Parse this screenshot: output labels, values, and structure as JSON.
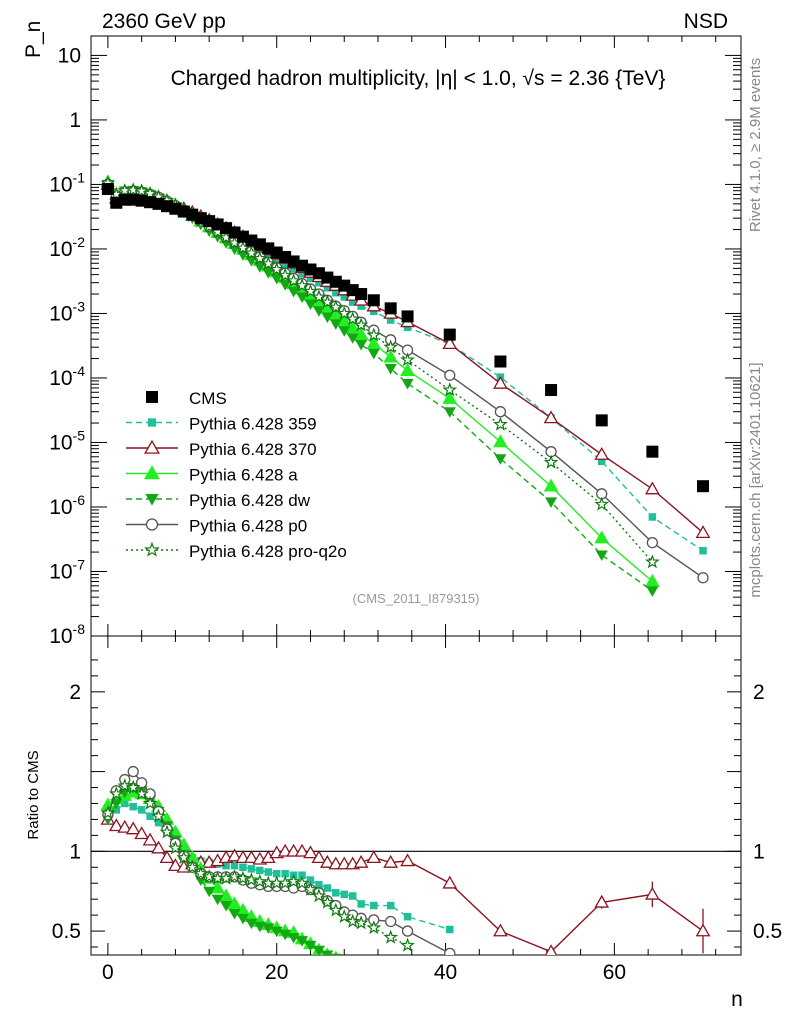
{
  "header": {
    "left": "2360 GeV pp",
    "right": "NSD",
    "title": "Charged hadron multiplicity, |η| < 1.0, √s = 2.36 {TeV}",
    "side_top": "Rivet 4.1.0, ≥ 2.9M events",
    "side_bottom": "mcplots.cern.ch [arXiv:2401.10621]",
    "analysis": "(CMS_2011_I879315)"
  },
  "colors": {
    "cms": "#000000",
    "p359": "#1fbf99",
    "p370": "#8b1420",
    "pa": "#22ee22",
    "pdw": "#13a813",
    "pp0": "#555555",
    "pq2o": "#0d7a0d"
  },
  "chart_data": {
    "type": "line",
    "title": "Charged hadron multiplicity, |η| < 1.0, √s = 2.36 {TeV}",
    "xlabel": "n",
    "ylabel": "P_n",
    "ratio_ylabel": "Ratio to CMS",
    "xlim": [
      -2,
      75
    ],
    "ylim": [
      1e-08,
      20
    ],
    "ratio_ylim": [
      0.35,
      2.35
    ],
    "x_ticks": [
      0,
      20,
      40,
      60
    ],
    "y_ticks": [
      {
        "v": 1e-08,
        "base": "10",
        "exp": "-8"
      },
      {
        "v": 1e-07,
        "base": "10",
        "exp": "-7"
      },
      {
        "v": 1e-06,
        "base": "10",
        "exp": "-6"
      },
      {
        "v": 1e-05,
        "base": "10",
        "exp": "-5"
      },
      {
        "v": 0.0001,
        "base": "10",
        "exp": "-4"
      },
      {
        "v": 0.001,
        "base": "10",
        "exp": "-3"
      },
      {
        "v": 0.01,
        "base": "10",
        "exp": "-2"
      },
      {
        "v": 0.1,
        "base": "10",
        "exp": "-1"
      },
      {
        "v": 1,
        "base": "1",
        "exp": ""
      },
      {
        "v": 10,
        "base": "10",
        "exp": ""
      }
    ],
    "ratio_ticks": [
      0.5,
      1,
      2
    ],
    "cms": {
      "name": "CMS",
      "x": [
        0,
        1,
        2,
        3,
        4,
        5,
        6,
        7,
        8,
        9,
        10,
        11,
        12,
        13,
        14,
        15,
        16,
        17,
        18,
        19,
        20,
        21,
        22,
        23,
        24,
        25,
        26,
        27,
        28,
        29,
        30,
        31.5,
        33.5,
        35.5,
        40.5,
        46.5,
        52.5,
        58.5,
        64.5,
        70.5
      ],
      "y": [
        0.085,
        0.052,
        0.058,
        0.058,
        0.056,
        0.053,
        0.05,
        0.046,
        0.042,
        0.038,
        0.034,
        0.03,
        0.027,
        0.024,
        0.021,
        0.018,
        0.0155,
        0.0135,
        0.0118,
        0.0102,
        0.0088,
        0.0075,
        0.0064,
        0.0055,
        0.0048,
        0.0042,
        0.0036,
        0.0031,
        0.0027,
        0.0023,
        0.002,
        0.0016,
        0.0012,
        0.0009,
        0.00047,
        0.00018,
        6.5e-05,
        2.2e-05,
        7.2e-06,
        2.1e-06
      ]
    },
    "series": [
      {
        "name": "Pythia 6.428 359",
        "key": "p359",
        "marker": "square",
        "dash": "6,4",
        "x": [
          0,
          1,
          2,
          3,
          4,
          5,
          6,
          7,
          8,
          9,
          10,
          11,
          12,
          13,
          14,
          15,
          16,
          17,
          18,
          19,
          20,
          21,
          22,
          23,
          24,
          25,
          26,
          27,
          28,
          29,
          30,
          31.5,
          33.5,
          35.5,
          40.5,
          46.5,
          52.5,
          58.5,
          64.5,
          70.5
        ],
        "y": [
          0.1,
          0.062,
          0.075,
          0.077,
          0.074,
          0.068,
          0.061,
          0.054,
          0.047,
          0.04,
          0.034,
          0.029,
          0.024,
          0.021,
          0.0175,
          0.015,
          0.0128,
          0.011,
          0.0095,
          0.0081,
          0.0069,
          0.0058,
          0.0049,
          0.0041,
          0.0035,
          0.003,
          0.0025,
          0.0021,
          0.0018,
          0.0015,
          0.0013,
          0.00108,
          0.00079,
          0.00061,
          0.000335,
          0.000103,
          2.4e-05,
          5.1e-06,
          7e-07,
          2.1e-07
        ],
        "ratio_x": [
          0,
          1,
          2,
          3,
          4,
          5,
          6,
          7,
          8,
          9,
          10,
          11,
          12,
          13,
          14,
          15,
          16,
          17,
          18,
          19,
          20,
          21,
          22,
          23,
          24,
          25,
          26,
          27,
          28,
          29,
          30,
          31.5,
          33.5,
          35.5,
          40.5
        ],
        "ratio_y": [
          1.22,
          1.26,
          1.3,
          1.28,
          1.26,
          1.22,
          1.18,
          1.12,
          1.06,
          1.0,
          0.96,
          0.94,
          0.93,
          0.92,
          0.91,
          0.91,
          0.9,
          0.89,
          0.88,
          0.87,
          0.86,
          0.86,
          0.85,
          0.85,
          0.82,
          0.79,
          0.77,
          0.74,
          0.73,
          0.72,
          0.67,
          0.66,
          0.66,
          0.59,
          0.51
        ]
      },
      {
        "name": "Pythia 6.428 370",
        "key": "p370",
        "marker": "open-triangle",
        "dash": "",
        "x": [
          0,
          1,
          2,
          3,
          4,
          5,
          6,
          7,
          8,
          9,
          10,
          11,
          12,
          13,
          14,
          15,
          16,
          17,
          18,
          19,
          20,
          21,
          22,
          23,
          24,
          25,
          26,
          27,
          28,
          29,
          30,
          31.5,
          33.5,
          35.5,
          40.5,
          46.5,
          52.5,
          58.5,
          64.5,
          70.5
        ],
        "y": [
          0.1,
          0.061,
          0.066,
          0.067,
          0.065,
          0.062,
          0.058,
          0.053,
          0.047,
          0.042,
          0.037,
          0.032,
          0.028,
          0.024,
          0.021,
          0.018,
          0.0155,
          0.013,
          0.0112,
          0.0096,
          0.0083,
          0.0071,
          0.006,
          0.0051,
          0.0043,
          0.0037,
          0.0031,
          0.0027,
          0.0023,
          0.0019,
          0.0016,
          0.0013,
          0.001,
          0.00074,
          0.00034,
          8.2e-05,
          2.4e-05,
          6.5e-06,
          1.9e-06,
          4e-07
        ],
        "ratio_x": [
          0,
          1,
          2,
          3,
          4,
          5,
          6,
          7,
          8,
          9,
          10,
          11,
          12,
          13,
          14,
          15,
          16,
          17,
          18,
          19,
          20,
          21,
          22,
          23,
          24,
          25,
          26,
          27,
          28,
          29,
          30,
          31.5,
          33.5,
          35.5,
          40.5,
          46.5,
          52.5,
          58.5,
          64.5,
          70.5
        ],
        "ratio_y": [
          1.2,
          1.16,
          1.15,
          1.14,
          1.11,
          1.07,
          1.02,
          0.96,
          0.91,
          0.9,
          0.92,
          0.93,
          0.93,
          0.94,
          0.96,
          0.97,
          0.96,
          0.96,
          0.95,
          0.96,
          0.99,
          1.0,
          1.0,
          1.0,
          0.99,
          0.96,
          0.93,
          0.92,
          0.92,
          0.92,
          0.93,
          0.96,
          0.93,
          0.94,
          0.8,
          0.5,
          0.37,
          0.68,
          0.73,
          0.5
        ],
        "ratio_err": [
          0,
          0,
          0,
          0,
          0,
          0,
          0,
          0,
          0,
          0,
          0,
          0,
          0,
          0,
          0,
          0,
          0,
          0,
          0,
          0,
          0,
          0,
          0,
          0,
          0,
          0,
          0,
          0,
          0,
          0,
          0,
          0,
          0,
          0,
          0,
          0.02,
          0.03,
          0.04,
          0.08,
          0.14
        ]
      },
      {
        "name": "Pythia 6.428 a",
        "key": "pa",
        "marker": "triangle",
        "dash": "",
        "x": [
          0,
          1,
          2,
          3,
          4,
          5,
          6,
          7,
          8,
          9,
          10,
          11,
          12,
          13,
          14,
          15,
          16,
          17,
          18,
          19,
          20,
          21,
          22,
          23,
          24,
          25,
          26,
          27,
          28,
          29,
          30,
          31.5,
          33.5,
          35.5,
          40.5,
          46.5,
          52.5,
          58.5,
          64.5
        ],
        "y": [
          0.11,
          0.07,
          0.078,
          0.08,
          0.077,
          0.071,
          0.064,
          0.056,
          0.048,
          0.04,
          0.033,
          0.027,
          0.022,
          0.018,
          0.0148,
          0.0121,
          0.0099,
          0.0081,
          0.0066,
          0.0054,
          0.0044,
          0.0036,
          0.0029,
          0.0024,
          0.0019,
          0.0015,
          0.0012,
          0.00096,
          0.00076,
          0.0006,
          0.00047,
          0.00034,
          0.00021,
          0.00013,
          4.8e-05,
          1.02e-05,
          2.1e-06,
          3.3e-07,
          7e-08
        ],
        "ratio_x": [
          0,
          1,
          2,
          3,
          4,
          5,
          6,
          7,
          8,
          9,
          10,
          11,
          12,
          13,
          14,
          15,
          16,
          17,
          18,
          19,
          20,
          21,
          22,
          23,
          24,
          25,
          26,
          27
        ],
        "ratio_y": [
          1.29,
          1.33,
          1.35,
          1.37,
          1.36,
          1.33,
          1.28,
          1.2,
          1.12,
          1.04,
          0.96,
          0.89,
          0.83,
          0.77,
          0.72,
          0.67,
          0.63,
          0.59,
          0.56,
          0.54,
          0.52,
          0.5,
          0.49,
          0.45,
          0.42,
          0.38,
          0.35,
          0.33
        ]
      },
      {
        "name": "Pythia 6.428 dw",
        "key": "pdw",
        "marker": "inv-triangle",
        "dash": "6,4",
        "x": [
          0,
          1,
          2,
          3,
          4,
          5,
          6,
          7,
          8,
          9,
          10,
          11,
          12,
          13,
          14,
          15,
          16,
          17,
          18,
          19,
          20,
          21,
          22,
          23,
          24,
          25,
          26,
          27,
          28,
          29,
          30,
          31.5,
          33.5,
          35.5,
          40.5,
          46.5,
          52.5,
          58.5,
          64.5
        ],
        "y": [
          0.1,
          0.068,
          0.079,
          0.081,
          0.077,
          0.07,
          0.062,
          0.053,
          0.045,
          0.037,
          0.03,
          0.024,
          0.019,
          0.0155,
          0.0125,
          0.01,
          0.0081,
          0.0066,
          0.0053,
          0.0043,
          0.0035,
          0.0028,
          0.0022,
          0.0018,
          0.0014,
          0.0011,
          0.00088,
          0.00069,
          0.00054,
          0.00042,
          0.00033,
          0.00024,
          0.00014,
          8.2e-05,
          3e-05,
          5.6e-06,
          1.2e-06,
          1.8e-07,
          5e-08
        ],
        "ratio_x": [
          0,
          1,
          2,
          3,
          4,
          5,
          6,
          7,
          8,
          9,
          10,
          11,
          12,
          13,
          14,
          15,
          16,
          17,
          18,
          19,
          20,
          21,
          22,
          23,
          24,
          25,
          26,
          27
        ],
        "ratio_y": [
          1.2,
          1.3,
          1.37,
          1.4,
          1.38,
          1.32,
          1.25,
          1.16,
          1.07,
          0.98,
          0.9,
          0.82,
          0.75,
          0.7,
          0.66,
          0.61,
          0.58,
          0.55,
          0.53,
          0.52,
          0.5,
          0.48,
          0.46,
          0.44,
          0.41,
          0.38,
          0.35,
          0.33
        ]
      },
      {
        "name": "Pythia 6.428 p0",
        "key": "pp0",
        "marker": "circle",
        "dash": "",
        "x": [
          0,
          1,
          2,
          3,
          4,
          5,
          6,
          7,
          8,
          9,
          10,
          11,
          12,
          13,
          14,
          15,
          16,
          17,
          18,
          19,
          20,
          21,
          22,
          23,
          24,
          25,
          26,
          27,
          28,
          29,
          30,
          31.5,
          33.5,
          35.5,
          40.5,
          46.5,
          52.5,
          58.5,
          64.5,
          70.5
        ],
        "y": [
          0.1,
          0.065,
          0.076,
          0.079,
          0.076,
          0.07,
          0.063,
          0.055,
          0.047,
          0.04,
          0.033,
          0.027,
          0.0225,
          0.0188,
          0.0156,
          0.013,
          0.0109,
          0.0091,
          0.0075,
          0.0062,
          0.0051,
          0.0042,
          0.0035,
          0.0029,
          0.0024,
          0.002,
          0.0016,
          0.0013,
          0.0011,
          0.0009,
          0.00073,
          0.00055,
          0.00039,
          0.00027,
          0.00011,
          3e-05,
          7.2e-06,
          1.6e-06,
          2.8e-07,
          8e-08
        ],
        "ratio_x": [
          0,
          1,
          2,
          3,
          4,
          5,
          6,
          7,
          8,
          9,
          10,
          11,
          12,
          13,
          14,
          15,
          16,
          17,
          18,
          19,
          20,
          21,
          22,
          23,
          24,
          25,
          26,
          27,
          28,
          29,
          30,
          31.5,
          33.5,
          35.5,
          40.5
        ],
        "ratio_y": [
          1.23,
          1.38,
          1.45,
          1.5,
          1.43,
          1.36,
          1.25,
          1.14,
          1.05,
          0.97,
          0.9,
          0.86,
          0.84,
          0.84,
          0.84,
          0.84,
          0.82,
          0.8,
          0.79,
          0.78,
          0.78,
          0.78,
          0.77,
          0.78,
          0.76,
          0.74,
          0.69,
          0.66,
          0.62,
          0.6,
          0.58,
          0.57,
          0.56,
          0.5,
          0.36
        ]
      },
      {
        "name": "Pythia 6.428 pro-q2o",
        "key": "pq2o",
        "marker": "star",
        "dash": "2,3",
        "x": [
          0,
          1,
          2,
          3,
          4,
          5,
          6,
          7,
          8,
          9,
          10,
          11,
          12,
          13,
          14,
          15,
          16,
          17,
          18,
          19,
          20,
          21,
          22,
          23,
          24,
          25,
          26,
          27,
          28,
          29,
          30,
          31.5,
          33.5,
          35.5,
          40.5,
          46.5,
          52.5,
          58.5,
          64.5
        ],
        "y": [
          0.105,
          0.07,
          0.08,
          0.082,
          0.079,
          0.072,
          0.064,
          0.056,
          0.048,
          0.04,
          0.033,
          0.027,
          0.0222,
          0.0183,
          0.015,
          0.0124,
          0.0103,
          0.0086,
          0.0071,
          0.0059,
          0.0048,
          0.0039,
          0.0032,
          0.0027,
          0.0022,
          0.0018,
          0.0015,
          0.00125,
          0.001,
          0.00082,
          0.00066,
          0.00046,
          0.0003,
          0.00019,
          6.5e-05,
          1.9e-05,
          4.9e-06,
          1.1e-06,
          1.4e-07
        ],
        "ratio_x": [
          0,
          1,
          2,
          3,
          4,
          5,
          6,
          7,
          8,
          9,
          10,
          11,
          12,
          13,
          14,
          15,
          16,
          17,
          18,
          19,
          20,
          21,
          22,
          23,
          24,
          25,
          26,
          27,
          28,
          29,
          30,
          31.5,
          33.5,
          35.5
        ],
        "ratio_y": [
          1.24,
          1.36,
          1.41,
          1.4,
          1.36,
          1.3,
          1.22,
          1.12,
          1.02,
          0.96,
          0.9,
          0.86,
          0.84,
          0.83,
          0.83,
          0.84,
          0.83,
          0.82,
          0.81,
          0.8,
          0.8,
          0.8,
          0.81,
          0.8,
          0.76,
          0.72,
          0.68,
          0.63,
          0.59,
          0.56,
          0.55,
          0.52,
          0.46,
          0.41
        ]
      }
    ]
  }
}
